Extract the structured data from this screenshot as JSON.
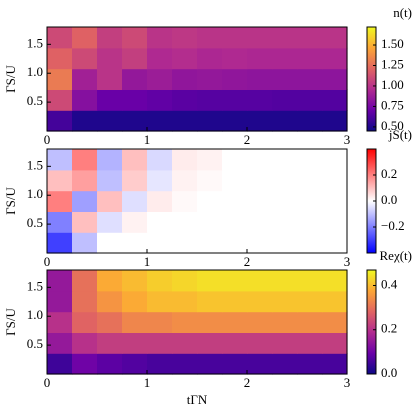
{
  "chart_data": [
    {
      "type": "heatmap",
      "colorbar_label": "n(t)",
      "ylabel": "ΓS/U",
      "colormap": "plasma",
      "xlim": [
        0,
        3
      ],
      "ylim": [
        0,
        1.8
      ],
      "xticks": [
        0,
        1,
        2,
        3
      ],
      "yticks": [
        0.5,
        {
          "value": 1,
          "label": "1.0"
        },
        1.5
      ],
      "clim": [
        0.45,
        1.72
      ],
      "cticks": [
        {
          "value": 0.5,
          "label": "0.50"
        },
        {
          "value": 0.75,
          "label": "0.75"
        },
        {
          "value": 1,
          "label": "1.00"
        },
        {
          "value": 1.25,
          "label": "1.25"
        },
        {
          "value": 1.5,
          "label": "1.50"
        }
      ],
      "x": [
        0.125,
        0.375,
        0.625,
        0.875,
        1.125,
        1.375,
        1.625,
        1.875,
        2.125,
        2.375,
        2.625,
        2.875
      ],
      "y": [
        0.18,
        0.54,
        0.9,
        1.26,
        1.62
      ],
      "z": [
        [
          0.6,
          0.5,
          0.5,
          0.5,
          0.5,
          0.5,
          0.5,
          0.5,
          0.5,
          0.5,
          0.5,
          0.5
        ],
        [
          1.1,
          0.8,
          0.7,
          0.7,
          0.68,
          0.66,
          0.65,
          0.65,
          0.65,
          0.64,
          0.64,
          0.64
        ],
        [
          1.3,
          0.9,
          1.0,
          0.85,
          0.88,
          0.84,
          0.85,
          0.84,
          0.83,
          0.83,
          0.83,
          0.83
        ],
        [
          1.2,
          1.1,
          1.0,
          1.05,
          0.95,
          0.97,
          0.94,
          0.95,
          0.94,
          0.94,
          0.94,
          0.94
        ],
        [
          1.1,
          1.2,
          1.05,
          1.1,
          1.0,
          1.02,
          1.0,
          1.0,
          1.0,
          1.0,
          1.0,
          1.0
        ]
      ]
    },
    {
      "type": "heatmap",
      "colorbar_label": "jS(t)",
      "ylabel": "ΓS/U",
      "colormap": "bwr",
      "xlim": [
        0,
        3
      ],
      "ylim": [
        0,
        1.8
      ],
      "xticks": [
        0,
        1,
        2,
        3
      ],
      "yticks": [
        0.5,
        {
          "value": 1,
          "label": "1.0"
        },
        1.5
      ],
      "clim": [
        -0.4,
        0.4
      ],
      "cticks": [
        {
          "value": -0.2,
          "label": "−0.2"
        },
        {
          "value": 0,
          "label": "0.0"
        },
        0.2
      ],
      "x": [
        0.125,
        0.375,
        0.625,
        0.875,
        1.125,
        1.375,
        1.625,
        1.875,
        2.125,
        2.375,
        2.625,
        2.875
      ],
      "y": [
        0.18,
        0.54,
        0.9,
        1.26,
        1.62
      ],
      "z": [
        [
          -0.3,
          -0.1,
          0,
          0,
          0,
          0,
          0,
          0,
          0,
          0,
          0,
          0
        ],
        [
          -0.2,
          0.1,
          -0.05,
          0.02,
          0,
          0,
          0,
          0,
          0,
          0,
          0,
          0
        ],
        [
          0.2,
          -0.15,
          0.1,
          -0.05,
          0.03,
          0.01,
          0,
          0,
          0,
          0,
          0,
          0
        ],
        [
          0.1,
          0.15,
          -0.1,
          0.08,
          -0.04,
          0.02,
          0.01,
          0,
          0,
          0,
          0,
          0
        ],
        [
          -0.1,
          0.2,
          -0.12,
          0.1,
          -0.06,
          0.03,
          0.02,
          0,
          0,
          0,
          0,
          0
        ]
      ]
    },
    {
      "type": "heatmap",
      "colorbar_label": "Reχ(t)",
      "ylabel": "ΓS/U",
      "xlabel": "tΓN",
      "colormap": "plasma",
      "xlim": [
        0,
        3
      ],
      "ylim": [
        0,
        1.8
      ],
      "xticks": [
        0,
        1,
        2,
        3
      ],
      "yticks": [
        0.5,
        {
          "value": 1,
          "label": "1.0"
        },
        1.5
      ],
      "clim": [
        0,
        0.47
      ],
      "cticks": [
        {
          "value": 0,
          "label": "0.0"
        },
        0.2,
        0.4
      ],
      "x": [
        0.125,
        0.375,
        0.625,
        0.875,
        1.125,
        1.375,
        1.625,
        1.875,
        2.125,
        2.375,
        2.625,
        2.875
      ],
      "y": [
        0.18,
        0.54,
        0.9,
        1.26,
        1.62
      ],
      "z": [
        [
          0.05,
          0.1,
          0.08,
          0.07,
          0.06,
          0.06,
          0.06,
          0.06,
          0.06,
          0.06,
          0.06,
          0.06
        ],
        [
          0.15,
          0.2,
          0.22,
          0.22,
          0.22,
          0.22,
          0.22,
          0.22,
          0.22,
          0.22,
          0.22,
          0.22
        ],
        [
          0.2,
          0.28,
          0.3,
          0.33,
          0.33,
          0.34,
          0.34,
          0.34,
          0.34,
          0.34,
          0.34,
          0.34
        ],
        [
          0.15,
          0.3,
          0.35,
          0.38,
          0.4,
          0.4,
          0.41,
          0.41,
          0.41,
          0.41,
          0.41,
          0.41
        ],
        [
          0.15,
          0.3,
          0.38,
          0.4,
          0.42,
          0.43,
          0.44,
          0.44,
          0.44,
          0.44,
          0.44,
          0.44
        ]
      ]
    }
  ]
}
